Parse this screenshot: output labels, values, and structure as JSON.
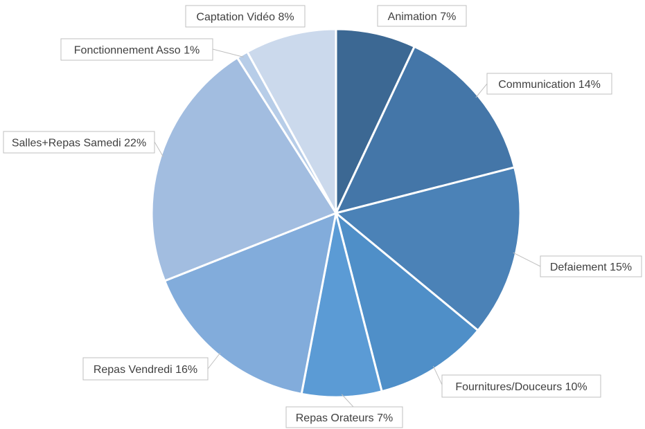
{
  "chart_data": {
    "type": "pie",
    "title": "",
    "slices": [
      {
        "label": "Animation",
        "value": 7,
        "value_label": "7%",
        "color": "#3C6893"
      },
      {
        "label": "Communication",
        "value": 14,
        "value_label": "14%",
        "color": "#4476A8"
      },
      {
        "label": "Defaiement",
        "value": 15,
        "value_label": "15%",
        "color": "#4B82B7"
      },
      {
        "label": "Fournitures/Douceurs",
        "value": 10,
        "value_label": "10%",
        "color": "#4F8FC8"
      },
      {
        "label": "Repas Orateurs",
        "value": 7,
        "value_label": "7%",
        "color": "#5B9BD5"
      },
      {
        "label": "Repas Vendredi",
        "value": 16,
        "value_label": "16%",
        "color": "#82ACDB"
      },
      {
        "label": "Salles+Repas Samedi",
        "value": 22,
        "value_label": "22%",
        "color": "#A2BDE0"
      },
      {
        "label": "Fonctionnement Asso",
        "value": 1,
        "value_label": "1%",
        "color": "#B7CDE8"
      },
      {
        "label": "Captation Vidéo",
        "value": 8,
        "value_label": "8%",
        "color": "#CBD9EC"
      }
    ],
    "legend": "none",
    "data_labels": "callout-outside"
  }
}
